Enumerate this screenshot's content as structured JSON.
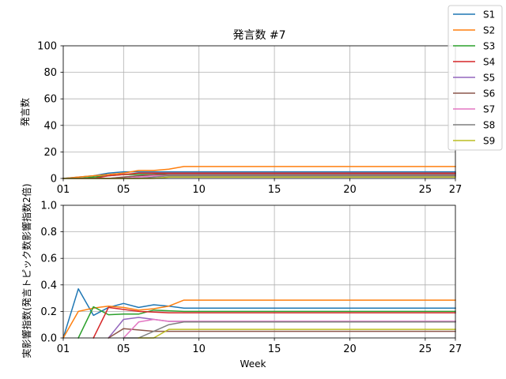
{
  "chart_data": [
    {
      "type": "line",
      "title": "発言数 #7",
      "xlabel": "",
      "ylabel": "発言数",
      "xlim": [
        1,
        27
      ],
      "ylim": [
        0,
        100
      ],
      "grid": true,
      "x_ticks": [
        1,
        5,
        10,
        15,
        20,
        25,
        27
      ],
      "x_tick_labels": [
        "01",
        "05",
        "10",
        "15",
        "20",
        "25",
        "27"
      ],
      "y_ticks": [
        0,
        20,
        40,
        60,
        80,
        100
      ],
      "y_tick_labels": [
        "0",
        "20",
        "40",
        "60",
        "80",
        "100"
      ],
      "x": [
        1,
        2,
        3,
        4,
        5,
        6,
        7,
        8,
        9,
        27
      ],
      "series": [
        {
          "name": "S1",
          "color": "#1f77b4",
          "values": [
            0,
            1,
            2,
            4,
            5,
            5,
            5,
            5,
            5,
            5
          ]
        },
        {
          "name": "S2",
          "color": "#ff7f0e",
          "values": [
            0,
            1,
            2,
            3,
            4,
            6,
            6,
            7,
            9,
            9
          ]
        },
        {
          "name": "S3",
          "color": "#2ca02c",
          "values": [
            0,
            0,
            1,
            2,
            3,
            3,
            3,
            4,
            4,
            4
          ]
        },
        {
          "name": "S4",
          "color": "#d62728",
          "values": [
            0,
            0,
            0,
            2,
            3,
            4,
            4,
            4,
            4,
            4
          ]
        },
        {
          "name": "S5",
          "color": "#9467bd",
          "values": [
            0,
            0,
            0,
            0,
            1,
            2,
            2,
            3,
            3,
            3
          ]
        },
        {
          "name": "S6",
          "color": "#8c564b",
          "values": [
            0,
            0,
            0,
            0,
            1,
            2,
            3,
            3,
            3,
            3
          ]
        },
        {
          "name": "S7",
          "color": "#e377c2",
          "values": [
            0,
            0,
            0,
            0,
            0,
            1,
            2,
            2,
            2,
            2
          ]
        },
        {
          "name": "S8",
          "color": "#7f7f7f",
          "values": [
            0,
            0,
            0,
            0,
            0,
            0,
            1,
            2,
            2,
            2
          ]
        },
        {
          "name": "S9",
          "color": "#bcbd22",
          "values": [
            0,
            0,
            0,
            0,
            0,
            0,
            0,
            1,
            1,
            1
          ]
        }
      ]
    },
    {
      "type": "line",
      "title": "",
      "xlabel": "Week",
      "ylabel": "実影響指数(発言トピック数影響指数2倍)",
      "xlim": [
        1,
        27
      ],
      "ylim": [
        0,
        1.0
      ],
      "grid": true,
      "x_ticks": [
        1,
        5,
        10,
        15,
        20,
        25,
        27
      ],
      "x_tick_labels": [
        "01",
        "05",
        "10",
        "15",
        "20",
        "25",
        "27"
      ],
      "y_ticks": [
        0,
        0.2,
        0.4,
        0.6,
        0.8,
        1.0
      ],
      "y_tick_labels": [
        "0.0",
        "0.2",
        "0.4",
        "0.6",
        "0.8",
        "1.0"
      ],
      "series": [
        {
          "name": "S1",
          "color": "#1f77b4",
          "points": [
            [
              1,
              0.0
            ],
            [
              2,
              0.37
            ],
            [
              3,
              0.17
            ],
            [
              4,
              0.23
            ],
            [
              5,
              0.26
            ],
            [
              6,
              0.23
            ],
            [
              7,
              0.25
            ],
            [
              8,
              0.24
            ],
            [
              9,
              0.225
            ],
            [
              27,
              0.225
            ]
          ]
        },
        {
          "name": "S2",
          "color": "#ff7f0e",
          "points": [
            [
              1,
              0.0
            ],
            [
              2,
              0.2
            ],
            [
              3,
              0.225
            ],
            [
              4,
              0.24
            ],
            [
              5,
              0.23
            ],
            [
              6,
              0.21
            ],
            [
              7,
              0.22
            ],
            [
              8,
              0.24
            ],
            [
              9,
              0.285
            ],
            [
              27,
              0.285
            ]
          ]
        },
        {
          "name": "S3",
          "color": "#2ca02c",
          "points": [
            [
              2,
              0.0
            ],
            [
              3,
              0.235
            ],
            [
              4,
              0.175
            ],
            [
              5,
              0.18
            ],
            [
              6,
              0.18
            ],
            [
              7,
              0.21
            ],
            [
              8,
              0.205
            ],
            [
              9,
              0.2
            ],
            [
              27,
              0.2
            ]
          ]
        },
        {
          "name": "S4",
          "color": "#d62728",
          "points": [
            [
              3,
              0.0
            ],
            [
              4,
              0.23
            ],
            [
              5,
              0.215
            ],
            [
              6,
              0.2
            ],
            [
              7,
              0.195
            ],
            [
              8,
              0.19
            ],
            [
              9,
              0.19
            ],
            [
              27,
              0.19
            ]
          ]
        },
        {
          "name": "S5",
          "color": "#9467bd",
          "points": [
            [
              4,
              0.0
            ],
            [
              5,
              0.14
            ],
            [
              6,
              0.155
            ],
            [
              7,
              0.14
            ],
            [
              8,
              0.125
            ],
            [
              9,
              0.125
            ],
            [
              27,
              0.125
            ]
          ]
        },
        {
          "name": "S6",
          "color": "#8c564b",
          "points": [
            [
              4,
              0.0
            ],
            [
              5,
              0.07
            ],
            [
              6,
              0.06
            ],
            [
              7,
              0.05
            ],
            [
              8,
              0.05
            ],
            [
              27,
              0.05
            ]
          ]
        },
        {
          "name": "S7",
          "color": "#e377c2",
          "points": [
            [
              5,
              0.0
            ],
            [
              6,
              0.12
            ],
            [
              7,
              0.14
            ],
            [
              8,
              0.125
            ],
            [
              9,
              0.125
            ],
            [
              27,
              0.125
            ]
          ]
        },
        {
          "name": "S8",
          "color": "#7f7f7f",
          "points": [
            [
              5,
              0.0
            ],
            [
              6,
              0.0
            ],
            [
              7,
              0.05
            ],
            [
              8,
              0.1
            ],
            [
              9,
              0.12
            ],
            [
              27,
              0.12
            ]
          ]
        },
        {
          "name": "S9",
          "color": "#bcbd22",
          "points": [
            [
              6,
              0.0
            ],
            [
              7,
              0.0
            ],
            [
              8,
              0.065
            ],
            [
              9,
              0.065
            ],
            [
              27,
              0.065
            ]
          ]
        }
      ]
    }
  ],
  "legend": {
    "placement": "top-right",
    "entries": [
      "S1",
      "S2",
      "S3",
      "S4",
      "S5",
      "S6",
      "S7",
      "S8",
      "S9"
    ]
  }
}
